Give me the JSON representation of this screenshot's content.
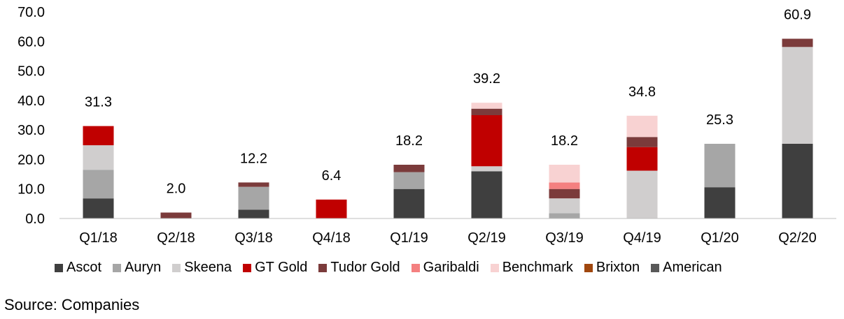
{
  "chart_data": {
    "type": "bar",
    "stacked": true,
    "categories": [
      "Q1/18",
      "Q2/18",
      "Q3/18",
      "Q4/18",
      "Q1/19",
      "Q2/19",
      "Q3/19",
      "Q4/19",
      "Q1/20",
      "Q2/20"
    ],
    "ylim": [
      0,
      70
    ],
    "yticks": [
      "0.0",
      "10.0",
      "20.0",
      "30.0",
      "40.0",
      "50.0",
      "60.0",
      "70.0"
    ],
    "totals": [
      "31.3",
      "2.0",
      "12.2",
      "6.4",
      "18.2",
      "39.2",
      "18.2",
      "34.8",
      "25.3",
      "60.9"
    ],
    "series": [
      {
        "name": "Ascot",
        "color": "#3f3f3f",
        "values": [
          6.8,
          0,
          3.0,
          0,
          10.0,
          16.0,
          0,
          0,
          10.6,
          25.3
        ]
      },
      {
        "name": "Auryn",
        "color": "#a6a6a6",
        "values": [
          9.7,
          0,
          7.7,
          0,
          5.7,
          0,
          1.8,
          0,
          14.7,
          0
        ]
      },
      {
        "name": "Skeena",
        "color": "#d0cece",
        "values": [
          8.3,
          0,
          0,
          0,
          0,
          1.7,
          5.0,
          16.2,
          0,
          32.8
        ]
      },
      {
        "name": "GT Gold",
        "color": "#c00000",
        "values": [
          6.5,
          0,
          0,
          6.4,
          0,
          17.3,
          0,
          8.0,
          0,
          0
        ]
      },
      {
        "name": "Tudor Gold",
        "color": "#7b3b3b",
        "values": [
          0,
          2.0,
          1.5,
          0,
          2.5,
          2.2,
          3.2,
          3.4,
          0,
          2.8
        ]
      },
      {
        "name": "Garibaldi",
        "color": "#f48080",
        "values": [
          0,
          0,
          0,
          0,
          0,
          0,
          2.2,
          0,
          0,
          0
        ]
      },
      {
        "name": "Benchmark",
        "color": "#f8d2d2",
        "values": [
          0,
          0,
          0,
          0,
          0,
          2.0,
          6.0,
          7.2,
          0,
          0
        ]
      },
      {
        "name": "Brixton",
        "color": "#a0470e",
        "values": [
          0,
          0,
          0,
          0,
          0,
          0,
          0,
          0,
          0,
          0
        ]
      },
      {
        "name": "American",
        "color": "#595959",
        "values": [
          0,
          0,
          0,
          0,
          0,
          0,
          0,
          0,
          0,
          0
        ]
      }
    ],
    "legend_position": "bottom",
    "grid": false
  },
  "source": "Source: Companies"
}
